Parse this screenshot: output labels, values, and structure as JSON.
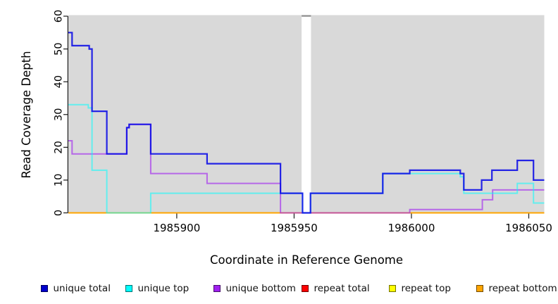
{
  "chart_data": {
    "type": "line",
    "subtype": "step-coverage",
    "title": "",
    "xlabel": "Coordinate in Reference Genome",
    "ylabel": "Read Coverage Depth",
    "xlim": [
      1985853.8,
      1986056.6
    ],
    "ylim": [
      0,
      60
    ],
    "x_ticks": [
      1985900,
      1985950,
      1986000,
      1986050
    ],
    "y_ticks": [
      0,
      10,
      20,
      30,
      40,
      50,
      60
    ],
    "grid": false,
    "plot_background": "#d9d9d9",
    "reference_gap": {
      "x_start": 1985953.2,
      "x_end": 1985957.2,
      "fill": "#ffffff",
      "cap_color": "#8c8c8c"
    },
    "series": [
      {
        "name": "repeat total",
        "color": "#ff0000",
        "opacity": 1,
        "width": 2,
        "points": [
          [
            1985853.8,
            0
          ],
          [
            1986056.6,
            0
          ]
        ]
      },
      {
        "name": "repeat top",
        "color": "#ffff00",
        "opacity": 1,
        "width": 2,
        "points": [
          [
            1985853.8,
            0
          ],
          [
            1986056.6,
            0
          ]
        ]
      },
      {
        "name": "repeat bottom",
        "color": "#ffa500",
        "opacity": 1,
        "width": 2,
        "points": [
          [
            1985853.8,
            0
          ],
          [
            1986056.6,
            0
          ]
        ]
      },
      {
        "name": "unique bottom",
        "color": "#a020f0",
        "opacity": 0.62,
        "width": 2,
        "points": [
          [
            1985853.8,
            22
          ],
          [
            1985855.4,
            18
          ],
          [
            1985878.7,
            26
          ],
          [
            1985879.7,
            27
          ],
          [
            1985888.9,
            12
          ],
          [
            1985912.9,
            9
          ],
          [
            1985944.2,
            0
          ],
          [
            1985999.3,
            1
          ],
          [
            1986030.2,
            4
          ],
          [
            1986034.6,
            7
          ],
          [
            1986056.6,
            7
          ]
        ]
      },
      {
        "name": "unique top",
        "color": "#00ffff",
        "opacity": 0.55,
        "width": 2,
        "points": [
          [
            1985853.8,
            33
          ],
          [
            1985862.3,
            32
          ],
          [
            1985863.9,
            13
          ],
          [
            1985870.2,
            0
          ],
          [
            1985888.9,
            6
          ],
          [
            1985953.6,
            0
          ],
          [
            1985957.0,
            6
          ],
          [
            1985987.8,
            12
          ],
          [
            1986020.8,
            11
          ],
          [
            1986022.3,
            6
          ],
          [
            1986045.1,
            9
          ],
          [
            1986052.0,
            3
          ],
          [
            1986056.6,
            3
          ]
        ]
      },
      {
        "name": "unique total",
        "color": "#0a0ae6",
        "opacity": 0.88,
        "width": 2.2,
        "points": [
          [
            1985853.8,
            55
          ],
          [
            1985855.4,
            51
          ],
          [
            1985862.7,
            50
          ],
          [
            1985863.9,
            31
          ],
          [
            1985870.2,
            18
          ],
          [
            1985878.7,
            26
          ],
          [
            1985879.7,
            27
          ],
          [
            1985888.9,
            18
          ],
          [
            1985912.9,
            15
          ],
          [
            1985944.2,
            6
          ],
          [
            1985953.6,
            0
          ],
          [
            1985957.0,
            6
          ],
          [
            1985987.8,
            12
          ],
          [
            1985999.3,
            13
          ],
          [
            1986020.8,
            12
          ],
          [
            1986022.3,
            7
          ],
          [
            1986029.9,
            10
          ],
          [
            1986034.3,
            13
          ],
          [
            1986045.1,
            16
          ],
          [
            1986052.0,
            10
          ],
          [
            1986056.6,
            10
          ]
        ]
      }
    ],
    "legend": [
      {
        "label": "unique total",
        "swatch_color": "#0000cd"
      },
      {
        "label": "unique top",
        "swatch_color": "#00ffff"
      },
      {
        "label": "unique bottom",
        "swatch_color": "#a020f0"
      },
      {
        "label": "repeat total",
        "swatch_color": "#ff0000"
      },
      {
        "label": "repeat top",
        "swatch_color": "#ffff00"
      },
      {
        "label": "repeat bottom",
        "swatch_color": "#ffa500"
      }
    ],
    "legend_position": "bottom"
  },
  "axes": {
    "x_label": "Coordinate in Reference Genome",
    "y_label": "Read Coverage Depth"
  }
}
